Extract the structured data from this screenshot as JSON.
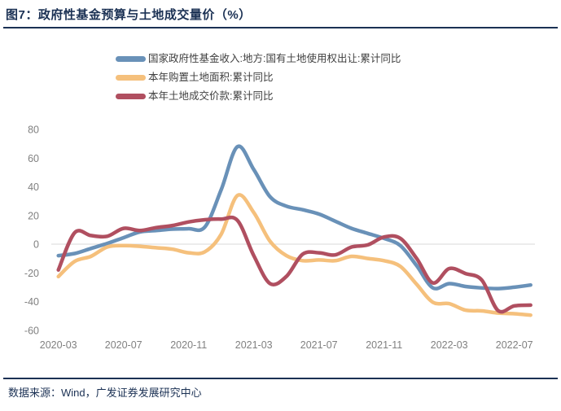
{
  "header": {
    "title": "图7：政府性基金预算与土地成交量价（%）"
  },
  "footer": {
    "source": "数据来源：Wind，广发证券发展研究中心"
  },
  "colors": {
    "accent_navy": "#1b3154",
    "grid_line": "#d9d9d9",
    "tick_text": "#808080",
    "legend_text": "#404040"
  },
  "chart_data": {
    "type": "line",
    "title": "图7：政府性基金预算与土地成交量价（%）",
    "x": [
      "2020-03",
      "2020-04",
      "2020-05",
      "2020-06",
      "2020-07",
      "2020-08",
      "2020-09",
      "2020-10",
      "2020-11",
      "2020-12",
      "2021-01",
      "2021-02",
      "2021-03",
      "2021-04",
      "2021-05",
      "2021-06",
      "2021-07",
      "2021-08",
      "2021-09",
      "2021-10",
      "2021-11",
      "2021-12",
      "2022-01",
      "2022-02",
      "2022-03",
      "2022-04",
      "2022-05",
      "2022-06",
      "2022-07",
      "2022-08"
    ],
    "series": [
      {
        "name": "国家政府性基金收入:地方:国有土地使用权出让:累计同比",
        "color": "#6991b8",
        "values": [
          -8,
          -6.5,
          -3,
          0.5,
          4.5,
          8.5,
          9.5,
          10.5,
          10.8,
          12,
          38,
          68,
          52,
          33,
          26.5,
          24,
          21,
          16,
          11,
          7.5,
          4,
          -1,
          -15,
          -30.5,
          -27.5,
          -29.5,
          -30.5,
          -31,
          -30,
          -28.5
        ]
      },
      {
        "name": "本年购置土地面积:累计同比",
        "color": "#f5c07c",
        "values": [
          -22.6,
          -12,
          -8.5,
          -2,
          -1,
          -1.5,
          -2.5,
          -3.5,
          -6,
          -5.3,
          7,
          34,
          22,
          2,
          -8,
          -11.5,
          -11,
          -11.5,
          -8.5,
          -10,
          -11.5,
          -15.5,
          -28,
          -40.5,
          -41.5,
          -46,
          -46.5,
          -48,
          -48.5,
          -49.5
        ]
      },
      {
        "name": "本年土地成交价款:累计同比",
        "color": "#b04f60",
        "values": [
          -18,
          8,
          6,
          5.5,
          11,
          9.5,
          11.5,
          13,
          15.5,
          17,
          17.5,
          16.5,
          -8,
          -27.5,
          -22.5,
          -7,
          -6,
          -7.5,
          -2,
          -0.5,
          5,
          4,
          -10,
          -27,
          -17,
          -20.5,
          -25,
          -46.3,
          -43,
          -42.5
        ]
      }
    ],
    "ylim": [
      -60,
      80
    ],
    "y_ticks": [
      80,
      60,
      40,
      20,
      0,
      -20,
      -40,
      -60
    ],
    "x_tick_every": 4,
    "grid": "zero-line-only",
    "legend_position": "top",
    "xlabel": "",
    "ylabel": ""
  }
}
